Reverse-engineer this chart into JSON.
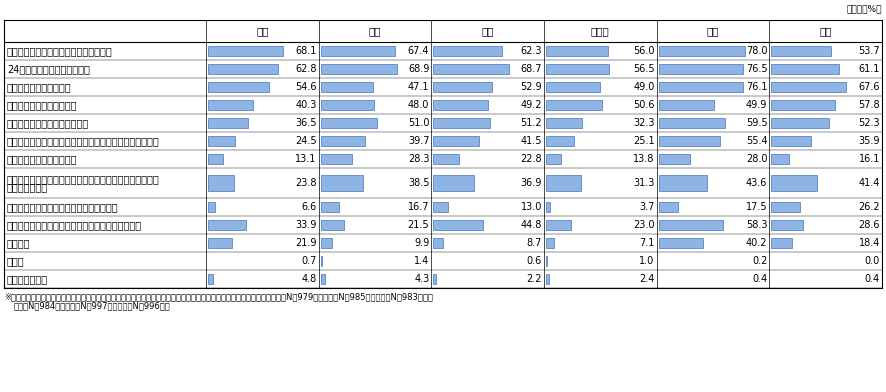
{
  "title_unit": "（単位：%）",
  "columns": [
    "日本",
    "米国",
    "英国",
    "ドイツ",
    "韓国",
    "中国"
  ],
  "rows": [
    {
      "label": "実店舗に出向かなくても買い物ができる",
      "values": [
        68.1,
        67.4,
        62.3,
        56.0,
        78.0,
        53.7
      ],
      "multiline": false
    },
    {
      "label": "24時間いつでも買物ができる",
      "values": [
        62.8,
        68.9,
        68.7,
        56.5,
        76.5,
        61.1
      ],
      "multiline": false
    },
    {
      "label": "実店舗よりも安く買える",
      "values": [
        54.6,
        47.1,
        52.9,
        49.0,
        76.1,
        67.6
      ],
      "multiline": false
    },
    {
      "label": "実店舗よりも品揃えが豊富",
      "values": [
        40.3,
        48.0,
        49.2,
        50.6,
        49.9,
        57.8
      ],
      "multiline": false
    },
    {
      "label": "実店舗に行く時間を節約できる",
      "values": [
        36.5,
        51.0,
        51.2,
        32.3,
        59.5,
        52.3
      ],
      "multiline": false
    },
    {
      "label": "検索機能等によって買いたいものを探す時間を節約できる",
      "values": [
        24.5,
        39.7,
        41.5,
        25.1,
        55.4,
        35.9
      ],
      "multiline": false
    },
    {
      "label": "対面での接客を省略できる",
      "values": [
        13.1,
        28.3,
        22.8,
        13.8,
        28.0,
        16.1
      ],
      "multiline": false
    },
    {
      "label": "ショッピングサイトに掲載された商品へのレビューを参照\nして購入できる",
      "values": [
        23.8,
        38.5,
        36.9,
        31.3,
        43.6,
        41.4
      ],
      "multiline": true
    },
    {
      "label": "購入履歴から欲しいものを提示してくれる",
      "values": [
        6.6,
        16.7,
        13.0,
        3.7,
        17.5,
        26.2
      ],
      "multiline": false
    },
    {
      "label": "自宅に持ち帰るのが大変な重いものが手軽に買える",
      "values": [
        33.9,
        21.5,
        44.8,
        23.0,
        58.3,
        28.6
      ],
      "multiline": false
    },
    {
      "label": "ポイント",
      "values": [
        21.9,
        9.9,
        8.7,
        7.1,
        40.2,
        18.4
      ],
      "multiline": false
    },
    {
      "label": "その他",
      "values": [
        0.7,
        1.4,
        0.6,
        1.0,
        0.2,
        0.0
      ],
      "multiline": false
    },
    {
      "label": "メリットはない",
      "values": [
        4.8,
        4.3,
        2.2,
        2.4,
        0.4,
        0.4
      ],
      "multiline": false
    }
  ],
  "bar_color": "#8db4e2",
  "bar_edge_color": "#4472c4",
  "bar_max": 80.0,
  "footnote_line1": "※各国、全体（加重平均）の値。別設問で「ネットショッピングを利用していない」の回答者を除きサンプルとした。日本（N＝979）、米国（N＝985）、英国（N＝983）、ド",
  "footnote_line2": "イツ（N＝984）、韓国（N＝997）、中国（N＝996）。"
}
